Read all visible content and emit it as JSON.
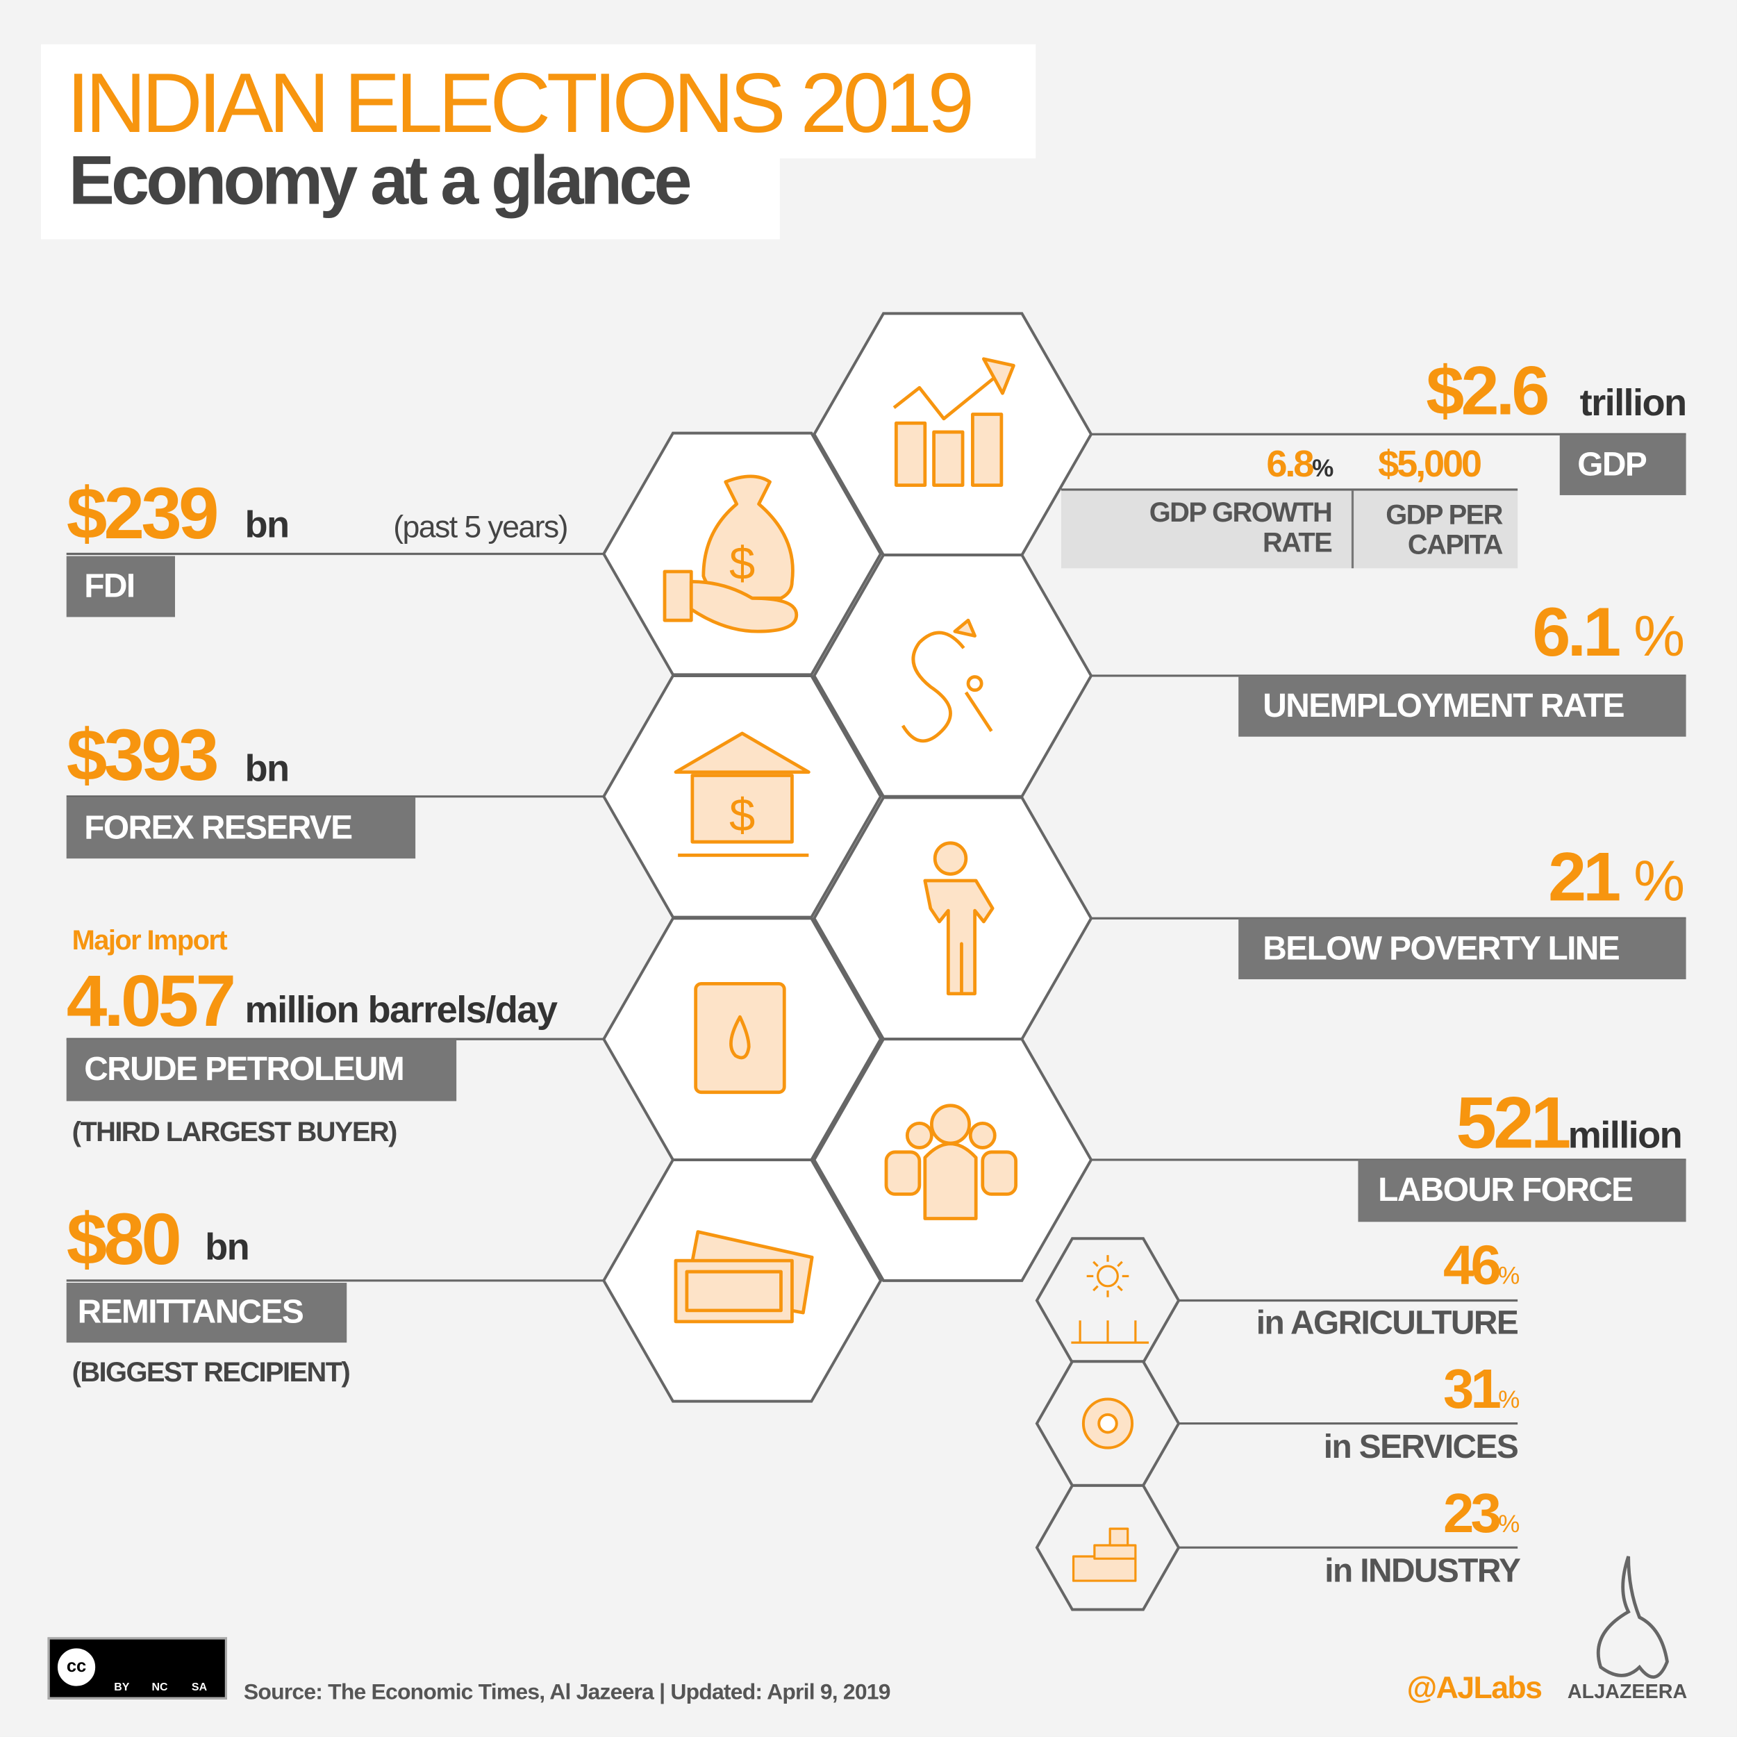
{
  "header": {
    "title": "INDIAN ELECTIONS 2019",
    "subtitle": "Economy at a glance"
  },
  "gdp": {
    "value": "$2.6",
    "unit": "trillion",
    "label": "GDP",
    "growth_value": "6.8",
    "growth_unit": "%",
    "growth_label_1": "GDP GROWTH",
    "growth_label_2": "RATE",
    "per_capita_value": "$5,000",
    "per_capita_label_1": "GDP PER",
    "per_capita_label_2": "CAPITA"
  },
  "fdi": {
    "value": "$239",
    "unit": "bn",
    "note": "(past 5 years)",
    "label": "FDI"
  },
  "forex": {
    "value": "$393",
    "unit": "bn",
    "label": "FOREX RESERVE"
  },
  "crude": {
    "kicker": "Major Import",
    "value": "4.057",
    "unit": "million barrels/day",
    "label": "CRUDE PETROLEUM",
    "note": "(THIRD LARGEST BUYER)"
  },
  "remittances": {
    "value": "$80",
    "unit": "bn",
    "label": "REMITTANCES",
    "note": "(BIGGEST RECIPIENT)"
  },
  "unemployment": {
    "value": "6.1",
    "unit": "%",
    "label": "UNEMPLOYMENT RATE"
  },
  "poverty": {
    "value": "21",
    "unit": "%",
    "label": "BELOW POVERTY LINE"
  },
  "labour": {
    "value": "521",
    "unit": "million",
    "label": "LABOUR FORCE",
    "sectors": [
      {
        "value": "46",
        "unit": "%",
        "label": "in AGRICULTURE"
      },
      {
        "value": "31",
        "unit": "%",
        "label": "in SERVICES"
      },
      {
        "value": "23",
        "unit": "%",
        "label": "in INDUSTRY"
      }
    ]
  },
  "footer": {
    "license": [
      "BY",
      "NC",
      "SA"
    ],
    "license_cc": "cc",
    "source": "Source:  The Economic Times, Al Jazeera |  Updated: April 9, 2019",
    "handle": "@AJLabs",
    "brand": "ALJAZEERA"
  },
  "colors": {
    "accent": "#f7950f",
    "box": "#777777",
    "icon_fill": "#fde3c8"
  }
}
